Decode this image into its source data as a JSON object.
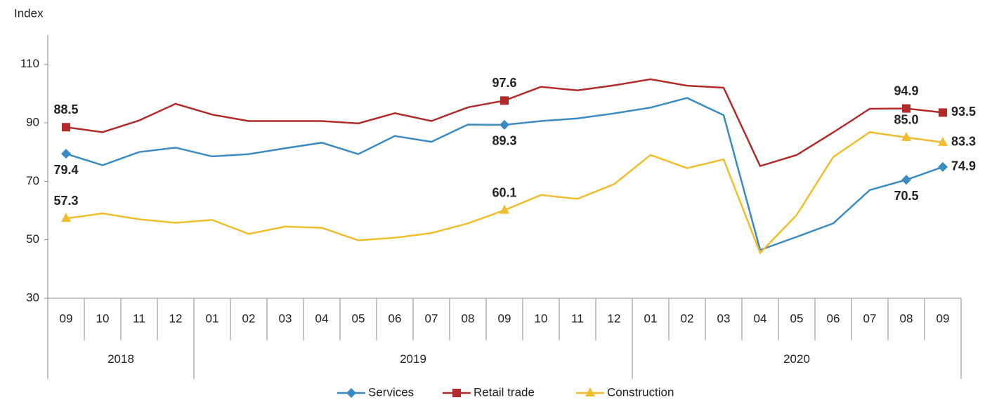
{
  "chart_data": {
    "type": "line",
    "y_label": "Index",
    "categories": [
      "09",
      "10",
      "11",
      "12",
      "01",
      "02",
      "03",
      "04",
      "05",
      "06",
      "07",
      "08",
      "09",
      "10",
      "11",
      "12",
      "01",
      "02",
      "03",
      "04",
      "05",
      "06",
      "07",
      "08",
      "09"
    ],
    "category_groups": [
      {
        "label": "2018",
        "categories": 4
      },
      {
        "label": "2019",
        "categories": 12
      },
      {
        "label": "2020",
        "categories": 9
      }
    ],
    "ylim": [
      30,
      120
    ],
    "yticks": [
      30,
      50,
      70,
      90,
      110
    ],
    "grid": false,
    "legend": "bottom",
    "series": [
      {
        "name": "Services",
        "color": "#3a8ac4",
        "marker": "diamond",
        "values": [
          79.4,
          75.5,
          80,
          81.5,
          78.5,
          79.3,
          81.3,
          83.2,
          79.3,
          85.5,
          83.5,
          89.4,
          89.3,
          90.6,
          91.5,
          93.2,
          95.2,
          98.5,
          92.6,
          46.5,
          51,
          55.6,
          67,
          70.5,
          74.9
        ],
        "value_labels": [
          "79.4",
          null,
          null,
          null,
          null,
          null,
          null,
          null,
          null,
          null,
          null,
          null,
          "89.3",
          null,
          null,
          null,
          null,
          null,
          null,
          null,
          null,
          null,
          null,
          "70.5",
          "74.9"
        ]
      },
      {
        "name": "Retail trade",
        "color": "#b22a2a",
        "marker": "square",
        "values": [
          88.5,
          86.8,
          90.8,
          96.5,
          92.8,
          90.6,
          90.6,
          90.6,
          89.8,
          93.3,
          90.6,
          95.3,
          97.6,
          102.3,
          101.1,
          102.8,
          104.9,
          102.7,
          102,
          75.2,
          79,
          86.7,
          94.8,
          94.9,
          93.5
        ],
        "value_labels": [
          "88.5",
          null,
          null,
          null,
          null,
          null,
          null,
          null,
          null,
          null,
          null,
          null,
          "97.6",
          null,
          null,
          null,
          null,
          null,
          null,
          null,
          null,
          null,
          null,
          "94.9",
          "93.5"
        ]
      },
      {
        "name": "Construction",
        "color": "#f0bd2c",
        "marker": "triangle",
        "values": [
          57.3,
          59,
          57,
          55.8,
          56.8,
          52,
          54.5,
          54.1,
          49.8,
          50.7,
          52.3,
          55.6,
          60.1,
          65.3,
          64,
          69,
          79,
          74.5,
          77.5,
          45.5,
          58.5,
          78.3,
          86.8,
          85,
          83.3
        ],
        "value_labels": [
          "57.3",
          null,
          null,
          null,
          null,
          null,
          null,
          null,
          null,
          null,
          null,
          null,
          "60.1",
          null,
          null,
          null,
          null,
          null,
          null,
          null,
          null,
          null,
          null,
          "85.0",
          "83.3"
        ]
      }
    ]
  }
}
